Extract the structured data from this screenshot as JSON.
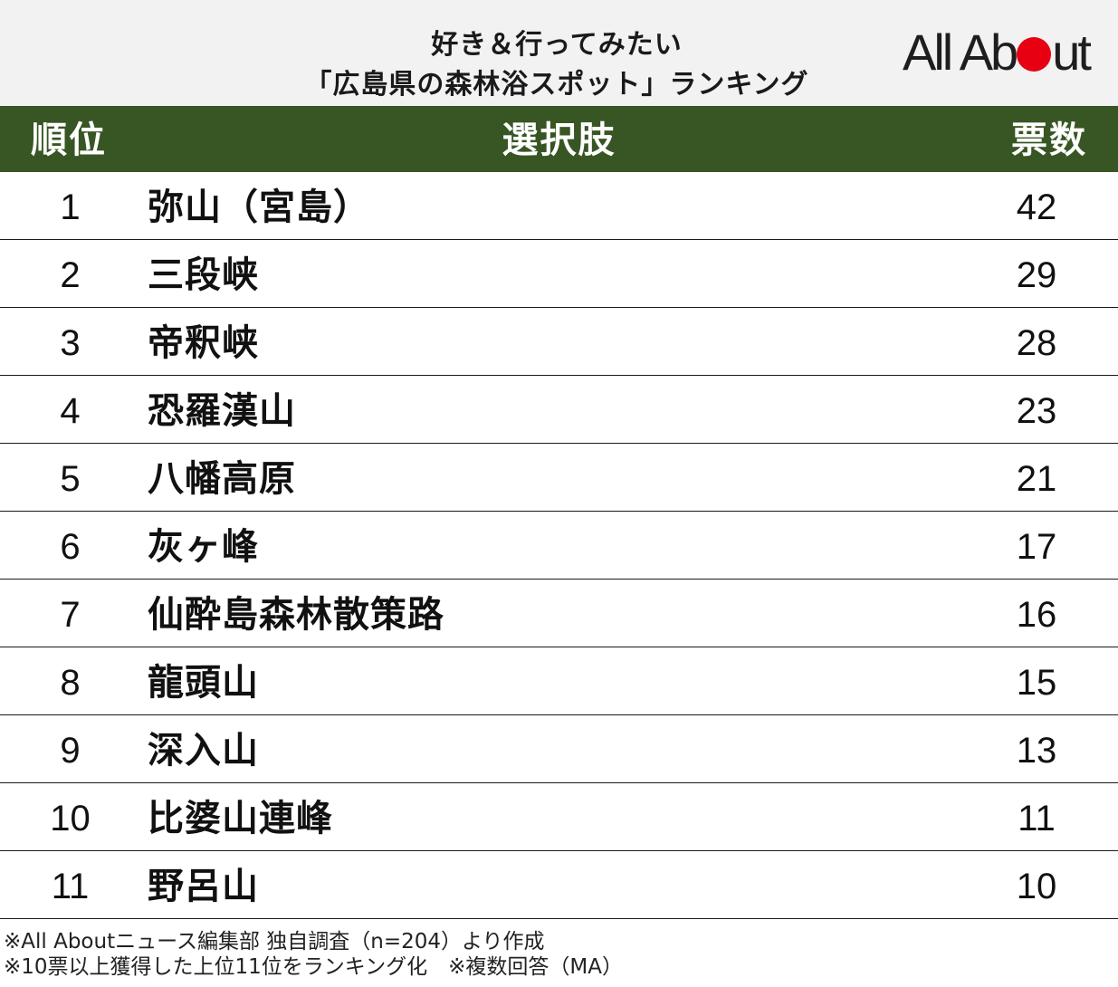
{
  "header": {
    "title_line1": "好き＆行ってみたい",
    "title_line2": "「広島県の森林浴スポット」ランキング",
    "logo_left": "All Ab",
    "logo_right": "ut"
  },
  "table": {
    "columns": [
      "順位",
      "選択肢",
      "票数"
    ],
    "rows": [
      {
        "rank": "1",
        "name": "弥山（宮島）",
        "votes": "42"
      },
      {
        "rank": "2",
        "name": "三段峡",
        "votes": "29"
      },
      {
        "rank": "3",
        "name": "帝釈峡",
        "votes": "28"
      },
      {
        "rank": "4",
        "name": "恐羅漢山",
        "votes": "23"
      },
      {
        "rank": "5",
        "name": "八幡高原",
        "votes": "21"
      },
      {
        "rank": "6",
        "name": "灰ヶ峰",
        "votes": "17"
      },
      {
        "rank": "7",
        "name": "仙酔島森林散策路",
        "votes": "16"
      },
      {
        "rank": "8",
        "name": "龍頭山",
        "votes": "15"
      },
      {
        "rank": "9",
        "name": "深入山",
        "votes": "13"
      },
      {
        "rank": "10",
        "name": "比婆山連峰",
        "votes": "11"
      },
      {
        "rank": "11",
        "name": "野呂山",
        "votes": "10"
      }
    ]
  },
  "notes": {
    "line1": "※All Aboutニュース編集部 独自調査（n=204）より作成",
    "line2": "※10票以上獲得した上位11位をランキング化　※複数回答（MA）"
  },
  "colors": {
    "header_bg": "#f2f2f2",
    "table_head_bg": "#375623",
    "logo_dot": "#e60012"
  }
}
